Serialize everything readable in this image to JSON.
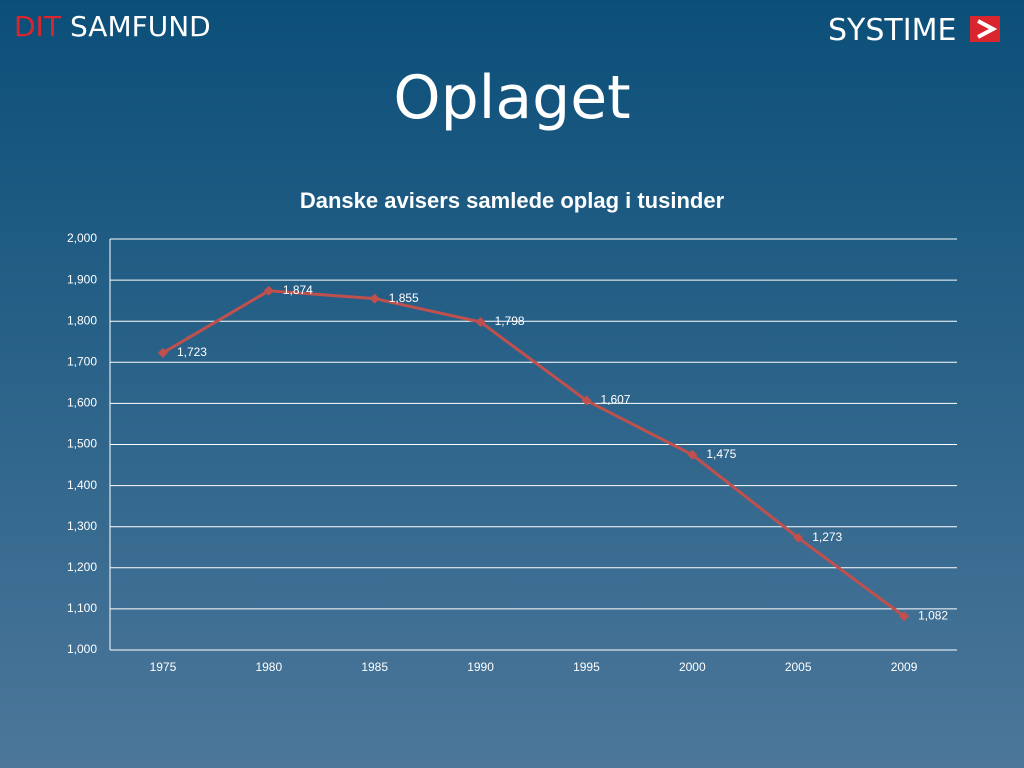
{
  "header": {
    "brand_red": "DIT",
    "brand_white": "SAMFUND",
    "logo": "SYSTIME"
  },
  "slide_title": "Oplaget",
  "chart_data": {
    "type": "line",
    "title": "Danske avisers samlede oplag i tusinder",
    "categories": [
      "1975",
      "1980",
      "1985",
      "1990",
      "1995",
      "2000",
      "2005",
      "2009"
    ],
    "values": [
      1723,
      1874,
      1855,
      1798,
      1607,
      1475,
      1273,
      1082
    ],
    "value_labels": [
      "1,723",
      "1,874",
      "1,855",
      "1,798",
      "1,607",
      "1,475",
      "1,273",
      "1,082"
    ],
    "color": "#c0504d",
    "ylim": [
      1000,
      2000
    ],
    "yticks": [
      {
        "value": 1000,
        "label": "1,000"
      },
      {
        "value": 1100,
        "label": "1,100"
      },
      {
        "value": 1200,
        "label": "1,200"
      },
      {
        "value": 1300,
        "label": "1,300"
      },
      {
        "value": 1400,
        "label": "1,400"
      },
      {
        "value": 1500,
        "label": "1,500"
      },
      {
        "value": 1600,
        "label": "1,600"
      },
      {
        "value": 1700,
        "label": "1,700"
      },
      {
        "value": 1800,
        "label": "1,800"
      },
      {
        "value": 1900,
        "label": "1,900"
      },
      {
        "value": 2000,
        "label": "2,000"
      }
    ],
    "grid": true
  }
}
